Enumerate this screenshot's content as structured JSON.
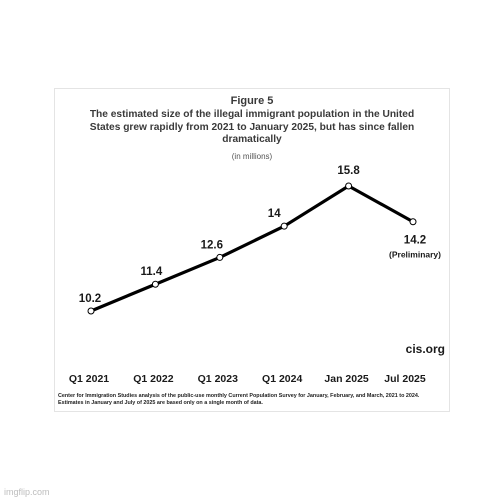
{
  "figure": {
    "number": "Figure 5",
    "title": "The estimated size of the illegal immigrant population in the United States grew rapidly from 2021 to January 2025, but has since fallen dramatically",
    "subtitle": "(in millions)",
    "brand": "cis.org",
    "source_line1": "Center for Immigration Studies analysis of the public-use monthly Current Population Survey for January, February, and March, 2021 to 2024.",
    "source_line2": "Estimates in January and July of 2025 are based only on a single month of data."
  },
  "chart_data": {
    "type": "line",
    "title": "The estimated size of the illegal immigrant population in the United States grew rapidly from 2021 to January 2025, but has since fallen dramatically",
    "subtitle": "(in millions)",
    "categories": [
      "Q1 2021",
      "Q1 2022",
      "Q1 2023",
      "Q1 2024",
      "Jan 2025",
      "Jul 2025"
    ],
    "series": [
      {
        "values": [
          10.2,
          11.4,
          12.6,
          14,
          15.8,
          14.2
        ],
        "labels": [
          "10.2",
          "11.4",
          "12.6",
          "14",
          "15.8",
          "14.2"
        ]
      }
    ],
    "annotations": [
      {
        "category": "Jul 2025",
        "text": "(Preliminary)"
      }
    ],
    "xlabel": "",
    "ylabel": "",
    "line_color": "#000000",
    "marker_fill": "#ffffff",
    "grid": false,
    "legend": false
  },
  "footer": {
    "watermark": "imgflip.com"
  }
}
